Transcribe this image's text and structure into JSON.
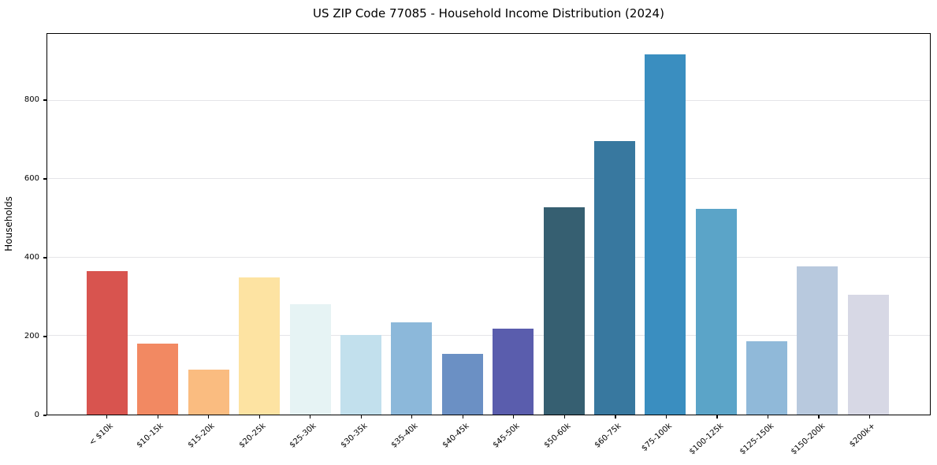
{
  "chart_data": {
    "type": "bar",
    "title": "US ZIP Code 77085 - Household Income Distribution (2024)",
    "xlabel": "",
    "ylabel": "Households",
    "categories": [
      "< $10k",
      "$10-15k",
      "$15-20k",
      "$20-25k",
      "$25-30k",
      "$30-35k",
      "$35-40k",
      "$40-45k",
      "$45-50k",
      "$50-60k",
      "$60-75k",
      "$75-100k",
      "$100-125k",
      "$125-150k",
      "$150-200k",
      "$200k+"
    ],
    "values": [
      365,
      180,
      114,
      350,
      281,
      202,
      236,
      154,
      218,
      528,
      697,
      918,
      525,
      186,
      378,
      306
    ],
    "bar_colors": [
      "#d8544f",
      "#f28962",
      "#fabc80",
      "#fde3a2",
      "#e6f3f4",
      "#c2e0ed",
      "#8cb8da",
      "#6b90c4",
      "#5a5dad",
      "#365f71",
      "#38789f",
      "#3a8ec0",
      "#5ba4c8",
      "#90b9d9",
      "#b8c9de",
      "#d7d8e5"
    ],
    "ylim": [
      0,
      970
    ],
    "y_ticks": [
      0,
      200,
      400,
      600,
      800
    ],
    "grid": "horizontal-only",
    "gridline_color": "#e5e5e8",
    "spine_color": "#000000",
    "background_color": "#ffffff",
    "legend": "none"
  }
}
